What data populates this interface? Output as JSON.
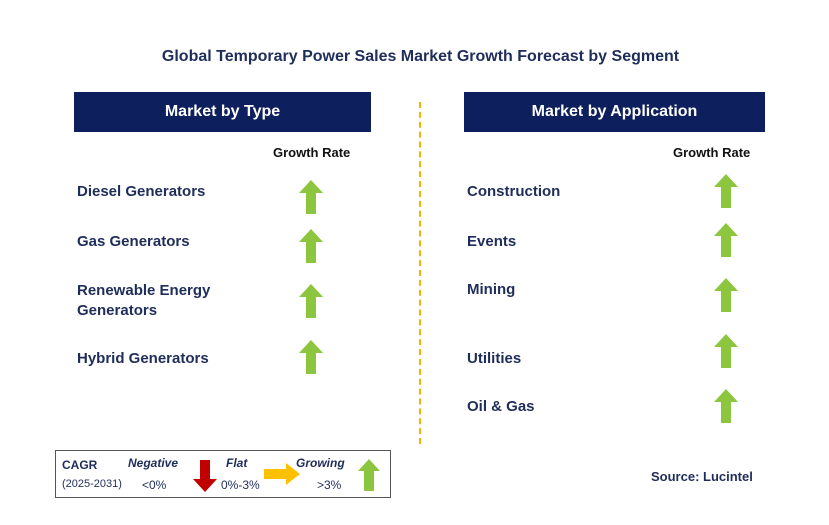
{
  "title": "Global Temporary Power Sales Market Growth Forecast by Segment",
  "left_panel": {
    "header": "Market by Type",
    "growth_rate_label": "Growth Rate",
    "segments": [
      {
        "label": "Diesel Generators",
        "trend": "growing"
      },
      {
        "label": "Gas Generators",
        "trend": "growing"
      },
      {
        "label": "Renewable Energy Generators",
        "trend": "growing"
      },
      {
        "label": "Hybrid Generators",
        "trend": "growing"
      }
    ]
  },
  "right_panel": {
    "header": "Market by Application",
    "growth_rate_label": "Growth Rate",
    "segments": [
      {
        "label": "Construction",
        "trend": "growing"
      },
      {
        "label": "Events",
        "trend": "growing"
      },
      {
        "label": "Mining",
        "trend": "growing"
      },
      {
        "label": "Utilities",
        "trend": "growing"
      },
      {
        "label": "Oil & Gas",
        "trend": "growing"
      }
    ]
  },
  "legend": {
    "cagr_label": "CAGR",
    "period": "(2025-2031)",
    "negative_label": "Negative",
    "negative_range": "<0%",
    "flat_label": "Flat",
    "flat_range": "0%-3%",
    "growing_label": "Growing",
    "growing_range": ">3%"
  },
  "source": "Source: Lucintel",
  "colors": {
    "header_bg": "#0d1f5c",
    "growing_arrow": "#8cc63f",
    "negative_arrow": "#c00000",
    "flat_arrow": "#ffc000",
    "divider": "#f2b600"
  }
}
